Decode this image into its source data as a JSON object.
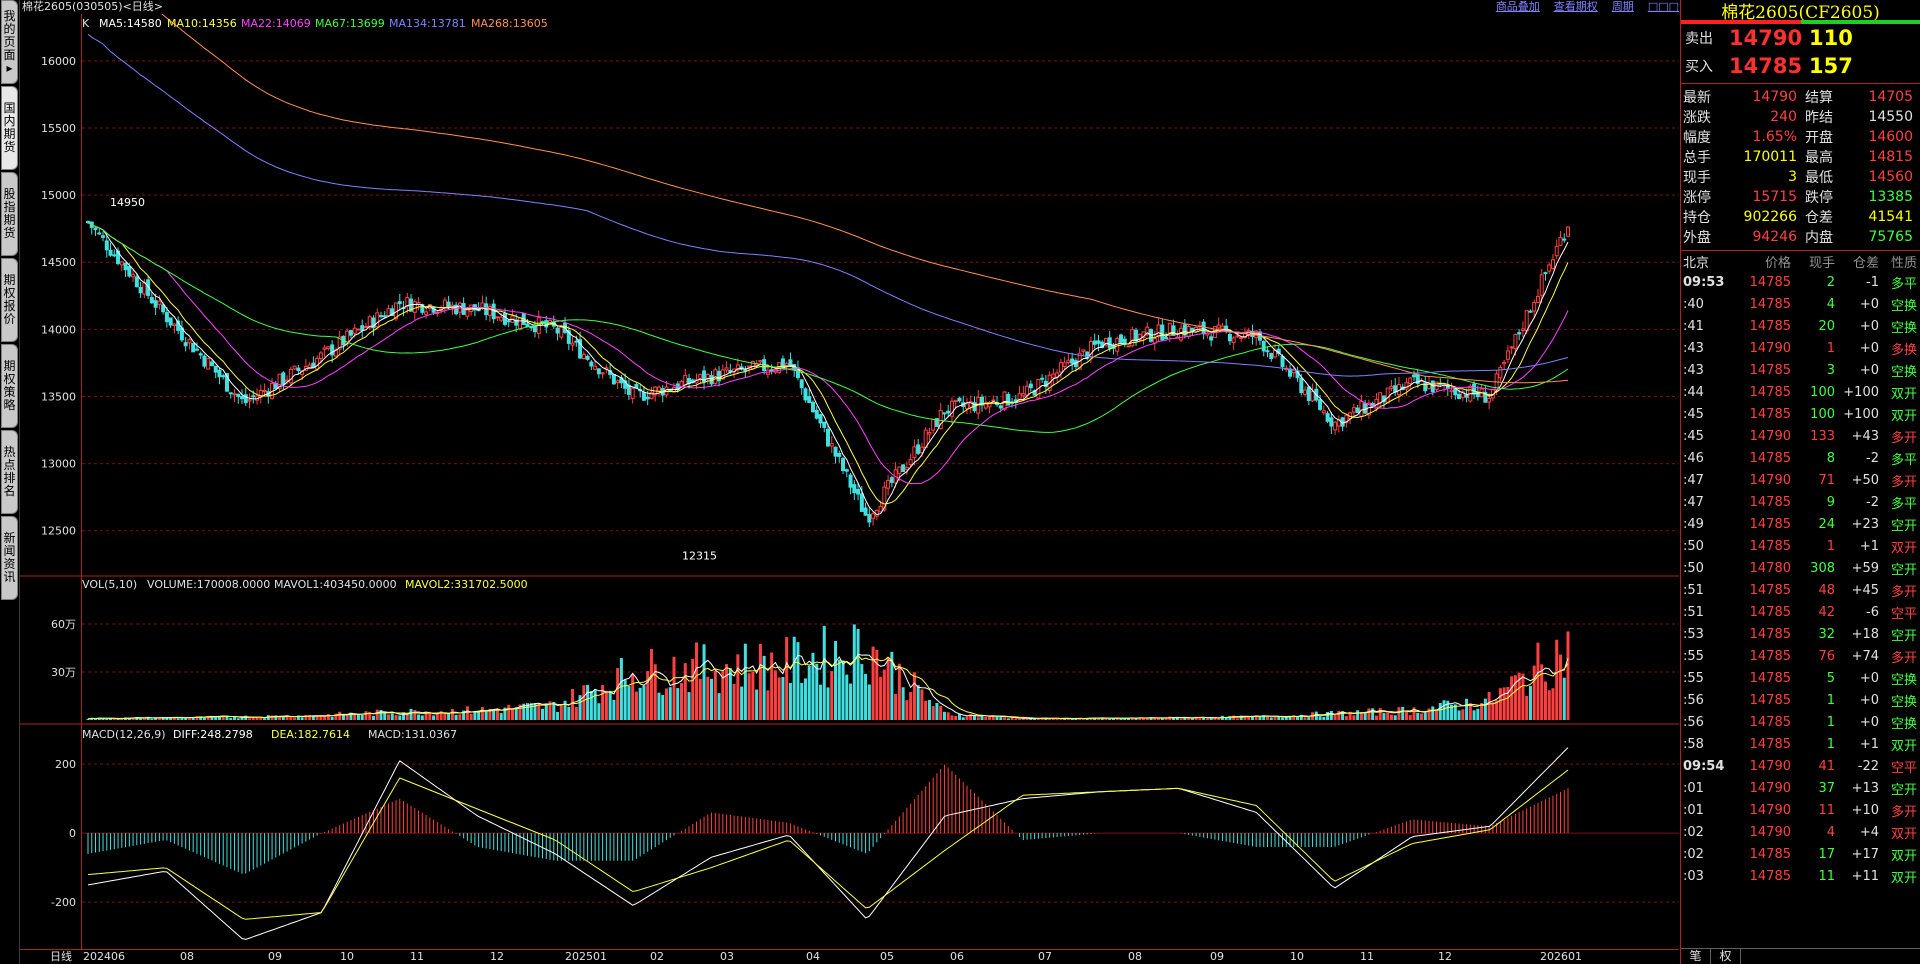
{
  "window": {
    "title": "棉花2605(030505)<日线>",
    "links": [
      "商品叠加",
      "查看期权",
      "周期",
      "□□□"
    ]
  },
  "sidebar": {
    "tabs": [
      {
        "label": "我的页面▸",
        "active": false
      },
      {
        "label": "国内期货",
        "active": true
      },
      {
        "label": "股指期货",
        "active": false
      },
      {
        "label": "期权报价",
        "active": false
      },
      {
        "label": "期权策略",
        "active": false
      },
      {
        "label": "热点排名",
        "active": false
      },
      {
        "label": "新闻资讯",
        "active": false
      }
    ]
  },
  "kline_header": {
    "k": "K",
    "ma5": "MA5:14580",
    "ma10": "MA10:14356",
    "ma22": "MA22:14069",
    "ma67": "MA67:13699",
    "ma134": "MA134:13781",
    "ma268": "MA268:13605"
  },
  "volume_header": {
    "name": "VOL(5,10)",
    "volume": "VOLUME:170008.0000",
    "mavol1": "MAVOL1:403450.0000",
    "mavol2": "MAVOL2:331702.5000"
  },
  "macd_header": {
    "name": "MACD(12,26,9)",
    "diff": "DIFF:248.2798",
    "dea": "DEA:182.7614",
    "macd": "MACD:131.0367"
  },
  "colors": {
    "up": "#ff4040",
    "down": "#40e0e0",
    "ma5": "#ffffff",
    "ma10": "#ffff40",
    "ma22": "#ff40ff",
    "ma67": "#40ff40",
    "ma134": "#8080ff",
    "ma268": "#ff9050",
    "grid": "#7a1010",
    "border": "#b02020"
  },
  "chart_data": [
    {
      "type": "candlestick",
      "name": "K",
      "y_axis_ticks": [
        16000,
        15500,
        15000,
        14500,
        14000,
        13500,
        13000,
        12500
      ],
      "ylim": [
        12200,
        16200
      ],
      "annotations": [
        {
          "text": "14950",
          "x": "2024-06",
          "y": 14950
        },
        {
          "text": "12315",
          "x": "2025-04",
          "y": 12315
        }
      ],
      "x": [
        "2024-06",
        "2024-07",
        "2024-08",
        "2024-09",
        "2024-10",
        "2024-11",
        "2024-12",
        "2025-01",
        "2025-02",
        "2025-03",
        "2025-04",
        "2025-05",
        "2025-06",
        "2025-07",
        "2025-08",
        "2025-09",
        "2025-10",
        "2025-11",
        "2025-12",
        "2026-01"
      ],
      "close_approx": [
        14800,
        14100,
        13450,
        13800,
        14200,
        14150,
        14000,
        13500,
        13650,
        13750,
        12600,
        13400,
        13500,
        13900,
        14000,
        13950,
        13300,
        13600,
        13500,
        14790
      ],
      "series": [
        {
          "name": "MA5",
          "value": 14580
        },
        {
          "name": "MA10",
          "value": 14356
        },
        {
          "name": "MA22",
          "value": 14069
        },
        {
          "name": "MA67",
          "value": 13699
        },
        {
          "name": "MA134",
          "value": 13781
        },
        {
          "name": "MA268",
          "value": 13605
        }
      ]
    },
    {
      "type": "bar",
      "name": "VOL(5,10)",
      "y_axis_ticks": [
        "60万",
        "30万"
      ],
      "ylim": [
        0,
        800000
      ],
      "x": [
        "2024-06",
        "2024-07",
        "2024-08",
        "2024-09",
        "2024-10",
        "2024-11",
        "2024-12",
        "2025-01",
        "2025-02",
        "2025-03",
        "2025-04",
        "2025-05",
        "2025-06",
        "2025-07",
        "2025-08",
        "2025-09",
        "2025-10",
        "2025-11",
        "2025-12",
        "2026-01"
      ],
      "values_approx": [
        10000,
        15000,
        20000,
        30000,
        50000,
        60000,
        90000,
        300000,
        330000,
        350000,
        450000,
        40000,
        10000,
        10000,
        15000,
        20000,
        40000,
        60000,
        120000,
        450000
      ],
      "series": [
        {
          "name": "VOLUME",
          "value": 170008
        },
        {
          "name": "MAVOL1",
          "value": 403450
        },
        {
          "name": "MAVOL2",
          "value": 331702.5
        }
      ]
    },
    {
      "type": "bar",
      "name": "MACD(12,26,9)",
      "y_axis_ticks": [
        200,
        0,
        -200
      ],
      "ylim": [
        -330,
        270
      ],
      "x": [
        "2024-06",
        "2024-07",
        "2024-08",
        "2024-09",
        "2024-10",
        "2024-11",
        "2024-12",
        "2025-01",
        "2025-02",
        "2025-03",
        "2025-04",
        "2025-05",
        "2025-06",
        "2025-07",
        "2025-08",
        "2025-09",
        "2025-10",
        "2025-11",
        "2025-12",
        "2026-01"
      ],
      "diff_approx": [
        -150,
        -110,
        -310,
        -230,
        210,
        50,
        -60,
        -210,
        -70,
        -5,
        -250,
        50,
        100,
        120,
        130,
        60,
        -160,
        -10,
        20,
        248
      ],
      "dea_approx": [
        -120,
        -100,
        -250,
        -230,
        160,
        70,
        -20,
        -170,
        -100,
        -20,
        -220,
        -50,
        110,
        120,
        130,
        80,
        -140,
        -30,
        10,
        183
      ],
      "series": [
        {
          "name": "DIFF",
          "value": 248.2798
        },
        {
          "name": "DEA",
          "value": 182.7614
        },
        {
          "name": "MACD",
          "value": 131.0367
        }
      ]
    }
  ],
  "x_axis": {
    "period_label": "日线",
    "labels": [
      "202406",
      "08",
      "09",
      "10",
      "11",
      "12",
      "202501",
      "02",
      "03",
      "04",
      "05",
      "06",
      "07",
      "08",
      "09",
      "10",
      "11",
      "12",
      "202601"
    ]
  },
  "quote_panel": {
    "title": "棉花2605(CF2605)",
    "ask_label": "卖出",
    "ask_price": "14790",
    "ask_volume": "110",
    "bid_label": "买入",
    "bid_price": "14785",
    "bid_volume": "157",
    "rows": [
      {
        "k1": "最新",
        "v1": "14790",
        "c1": "#ff4040",
        "k2": "结算",
        "v2": "14705",
        "c2": "#ff4040"
      },
      {
        "k1": "涨跌",
        "v1": "240",
        "c1": "#ff4040",
        "k2": "昨结",
        "v2": "14550",
        "c2": "#e0e0e0"
      },
      {
        "k1": "幅度",
        "v1": "1.65%",
        "c1": "#ff4040",
        "k2": "开盘",
        "v2": "14600",
        "c2": "#ff4040"
      },
      {
        "k1": "总手",
        "v1": "170011",
        "c1": "#ffff00",
        "k2": "最高",
        "v2": "14815",
        "c2": "#ff4040"
      },
      {
        "k1": "现手",
        "v1": "3",
        "c1": "#ffff00",
        "k2": "最低",
        "v2": "14560",
        "c2": "#ff4040"
      },
      {
        "k1": "涨停",
        "v1": "15715",
        "c1": "#ff4040",
        "k2": "跌停",
        "v2": "13385",
        "c2": "#40ff40"
      },
      {
        "k1": "持仓",
        "v1": "902266",
        "c1": "#ffff00",
        "k2": "仓差",
        "v2": "41541",
        "c2": "#ffff00"
      },
      {
        "k1": "外盘",
        "v1": "94246",
        "c1": "#ff4040",
        "k2": "内盘",
        "v2": "75765",
        "c2": "#40ff40"
      }
    ],
    "tick_headers": [
      "北京",
      "价格",
      "现手",
      "仓差",
      "性质"
    ],
    "ticks": [
      {
        "t": "09:53",
        "p": "14785",
        "v": "2",
        "d": "-1",
        "n": "多平",
        "nc": "#40ff40"
      },
      {
        "t": ":40",
        "p": "14785",
        "v": "4",
        "d": "+0",
        "n": "空换",
        "nc": "#40ff40"
      },
      {
        "t": ":41",
        "p": "14785",
        "v": "20",
        "d": "+0",
        "n": "空换",
        "nc": "#40ff40"
      },
      {
        "t": ":43",
        "p": "14790",
        "v": "1",
        "d": "+0",
        "n": "多换",
        "nc": "#ff4040"
      },
      {
        "t": ":43",
        "p": "14785",
        "v": "3",
        "d": "+0",
        "n": "空换",
        "nc": "#40ff40"
      },
      {
        "t": ":44",
        "p": "14785",
        "v": "100",
        "d": "+100",
        "n": "双开",
        "nc": "#40ff40"
      },
      {
        "t": ":45",
        "p": "14785",
        "v": "100",
        "d": "+100",
        "n": "双开",
        "nc": "#40ff40"
      },
      {
        "t": ":45",
        "p": "14790",
        "v": "133",
        "d": "+43",
        "n": "多开",
        "nc": "#ff4040"
      },
      {
        "t": ":46",
        "p": "14785",
        "v": "8",
        "d": "-2",
        "n": "多平",
        "nc": "#40ff40"
      },
      {
        "t": ":47",
        "p": "14790",
        "v": "71",
        "d": "+50",
        "n": "多开",
        "nc": "#ff4040"
      },
      {
        "t": ":47",
        "p": "14785",
        "v": "9",
        "d": "-2",
        "n": "多平",
        "nc": "#40ff40"
      },
      {
        "t": ":49",
        "p": "14785",
        "v": "24",
        "d": "+23",
        "n": "空开",
        "nc": "#40ff40"
      },
      {
        "t": ":50",
        "p": "14785",
        "v": "1",
        "d": "+1",
        "n": "双开",
        "nc": "#ff4040"
      },
      {
        "t": ":50",
        "p": "14780",
        "v": "308",
        "d": "+59",
        "n": "空开",
        "nc": "#40ff40"
      },
      {
        "t": ":51",
        "p": "14785",
        "v": "48",
        "d": "+45",
        "n": "多开",
        "nc": "#ff4040"
      },
      {
        "t": ":51",
        "p": "14785",
        "v": "42",
        "d": "-6",
        "n": "空平",
        "nc": "#ff4040"
      },
      {
        "t": ":53",
        "p": "14785",
        "v": "32",
        "d": "+18",
        "n": "空开",
        "nc": "#40ff40"
      },
      {
        "t": ":55",
        "p": "14785",
        "v": "76",
        "d": "+74",
        "n": "多开",
        "nc": "#ff4040"
      },
      {
        "t": ":55",
        "p": "14785",
        "v": "5",
        "d": "+0",
        "n": "空换",
        "nc": "#40ff40"
      },
      {
        "t": ":56",
        "p": "14785",
        "v": "1",
        "d": "+0",
        "n": "空换",
        "nc": "#40ff40"
      },
      {
        "t": ":56",
        "p": "14785",
        "v": "1",
        "d": "+0",
        "n": "空换",
        "nc": "#40ff40"
      },
      {
        "t": ":58",
        "p": "14785",
        "v": "1",
        "d": "+1",
        "n": "双开",
        "nc": "#40ff40"
      },
      {
        "t": "09:54",
        "p": "14790",
        "v": "41",
        "d": "-22",
        "n": "空平",
        "nc": "#ff4040"
      },
      {
        "t": ":01",
        "p": "14790",
        "v": "37",
        "d": "+13",
        "n": "空开",
        "nc": "#40ff40"
      },
      {
        "t": ":01",
        "p": "14790",
        "v": "11",
        "d": "+10",
        "n": "多开",
        "nc": "#ff4040"
      },
      {
        "t": ":02",
        "p": "14790",
        "v": "4",
        "d": "+4",
        "n": "双开",
        "nc": "#ff4040"
      },
      {
        "t": ":02",
        "p": "14785",
        "v": "17",
        "d": "+17",
        "n": "双开",
        "nc": "#40ff40"
      },
      {
        "t": ":03",
        "p": "14785",
        "v": "11",
        "d": "+11",
        "n": "双开",
        "nc": "#40ff40"
      }
    ],
    "footer_tabs": [
      "笔",
      "权"
    ]
  }
}
